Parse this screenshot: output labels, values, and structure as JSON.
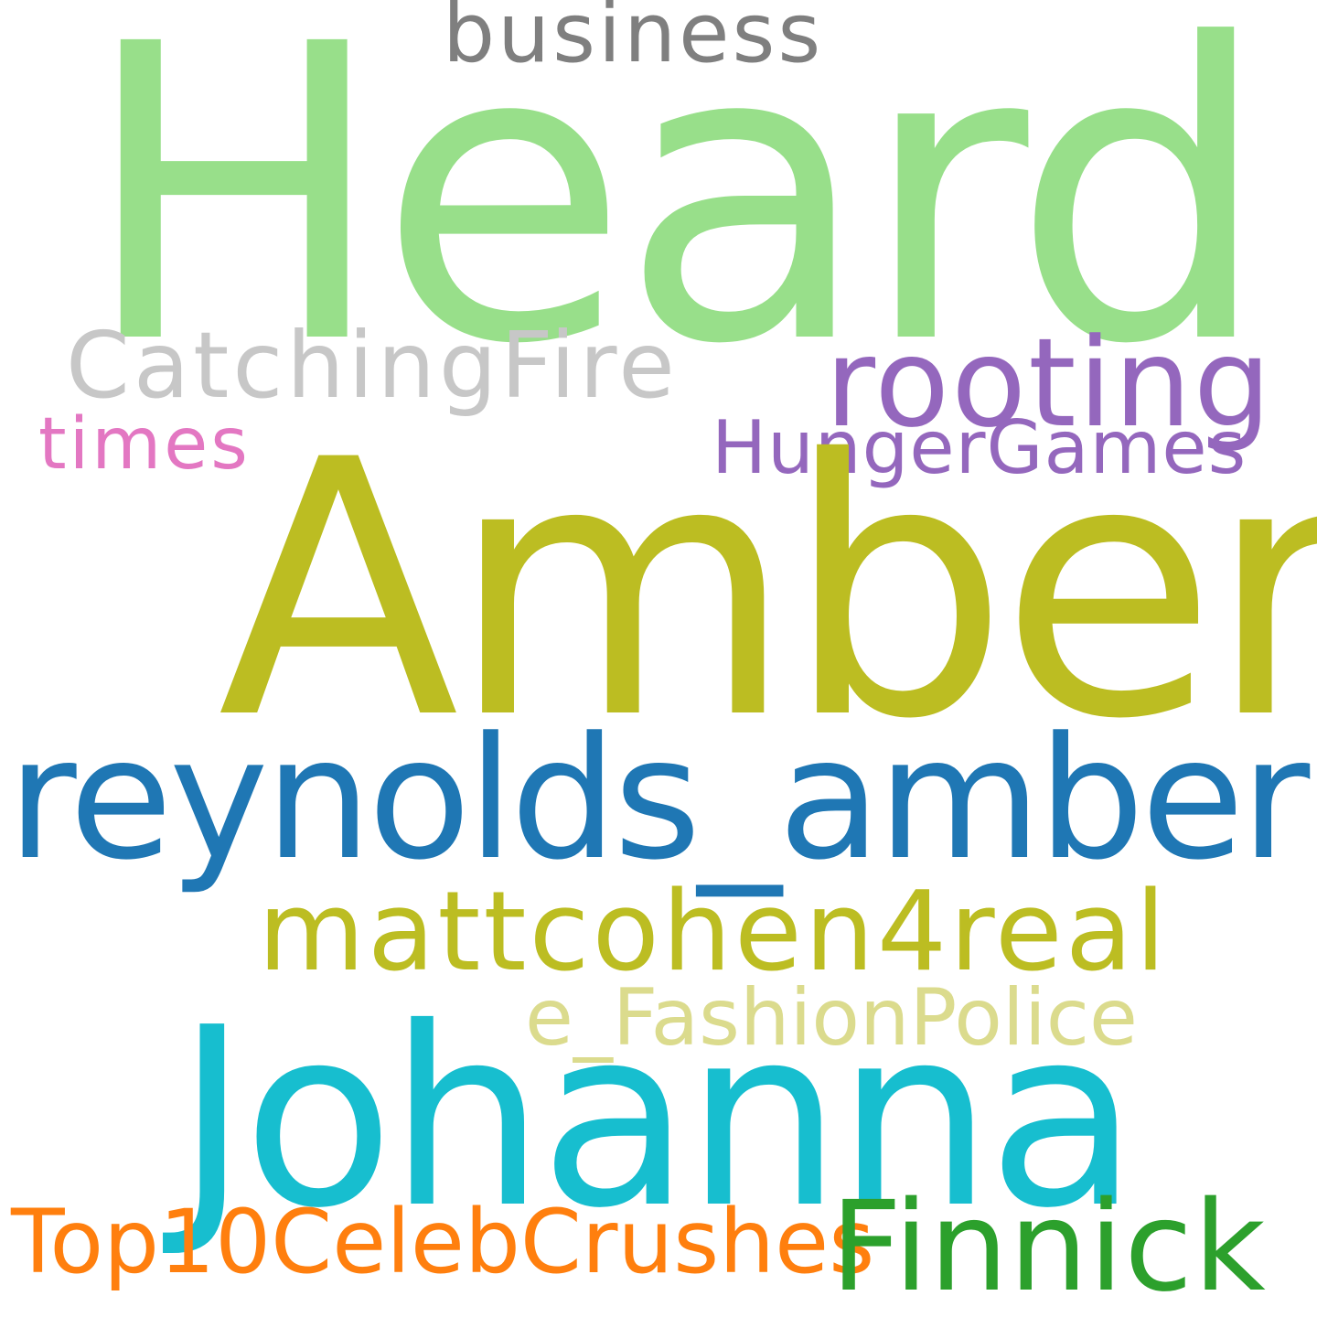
{
  "words": [
    {
      "key": "heard",
      "text": "Heard",
      "color": "#98df8a"
    },
    {
      "key": "business",
      "text": "business",
      "color": "#7f7f7f"
    },
    {
      "key": "catchingfire",
      "text": "CatchingFire",
      "color": "#c7c7c7"
    },
    {
      "key": "rooting",
      "text": "rooting",
      "color": "#9467bd"
    },
    {
      "key": "times",
      "text": "times",
      "color": "#e377c2"
    },
    {
      "key": "hungergames",
      "text": "HungerGames",
      "color": "#9467bd"
    },
    {
      "key": "amber",
      "text": "Amber",
      "color": "#bcbd22"
    },
    {
      "key": "reynolds_amber",
      "text": "reynolds_amber",
      "color": "#1f77b4"
    },
    {
      "key": "mattcohen4real",
      "text": "mattcohen4real",
      "color": "#bcbd22"
    },
    {
      "key": "e_fashionpolice",
      "text": "e_FashionPolice",
      "color": "#dbdb8d"
    },
    {
      "key": "johanna",
      "text": "Johanna",
      "color": "#17becf"
    },
    {
      "key": "top10celebcrushes",
      "text": "Top10CelebCrushes",
      "color": "#ff7f0e"
    },
    {
      "key": "finnick",
      "text": "Finnick",
      "color": "#2ca02c"
    }
  ]
}
